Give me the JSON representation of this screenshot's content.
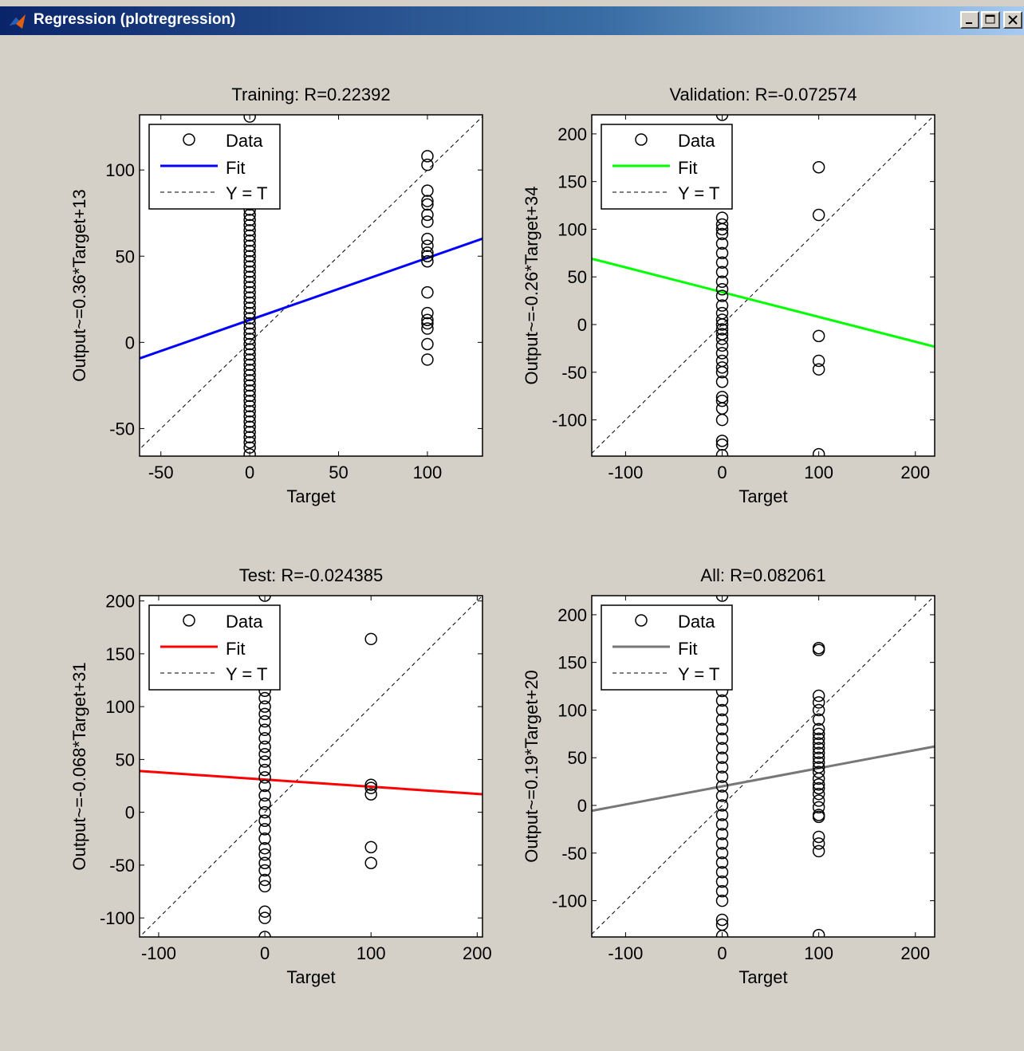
{
  "window": {
    "title": "Regression (plotregression)",
    "icon": "matlab-icon",
    "controls": [
      "minimize-icon",
      "maximize-icon",
      "close-icon"
    ]
  },
  "legend_labels": {
    "data": "Data",
    "fit": "Fit",
    "identity": "Y = T"
  },
  "chart_data": [
    {
      "type": "scatter",
      "title": "Training: R=0.22392",
      "xlabel": "Target",
      "ylabel": "Output~=0.36*Target+13",
      "xlim": [
        -62,
        131
      ],
      "ylim": [
        -66,
        132
      ],
      "xticks": [
        -50,
        0,
        50,
        100
      ],
      "yticks": [
        -50,
        0,
        50,
        100
      ],
      "fit_color": "#0000ff",
      "fit": {
        "slope": 0.36,
        "intercept": 13
      },
      "legend": "top-left",
      "points_x0": [
        -65,
        -61,
        -58,
        -55,
        -52,
        -49,
        -46,
        -43,
        -40,
        -37,
        -34,
        -31,
        -28,
        -25,
        -22,
        -19,
        -16,
        -13,
        -10,
        -7,
        -4,
        -1,
        2,
        5,
        8,
        11,
        14,
        17,
        20,
        23,
        26,
        29,
        32,
        35,
        38,
        41,
        44,
        47,
        50,
        53,
        56,
        59,
        62,
        65,
        68,
        71,
        74,
        77,
        80,
        131
      ],
      "points_x100": [
        108,
        103,
        88,
        82,
        80,
        74,
        70,
        60,
        56,
        52,
        50,
        47,
        29,
        17,
        13,
        11,
        8,
        -1,
        -10
      ]
    },
    {
      "type": "scatter",
      "title": "Validation: R=-0.072574",
      "xlabel": "Target",
      "ylabel": "Output~=-0.26*Target+34",
      "xlim": [
        -135,
        220
      ],
      "ylim": [
        -138,
        220
      ],
      "xticks": [
        -100,
        0,
        100,
        200
      ],
      "yticks": [
        -100,
        -50,
        0,
        50,
        100,
        150,
        200
      ],
      "fit_color": "#00ff00",
      "fit": {
        "slope": -0.26,
        "intercept": 34
      },
      "legend": "top-left",
      "points_x0": [
        -137,
        -126,
        -122,
        -100,
        -88,
        -80,
        -76,
        -60,
        -50,
        -45,
        -38,
        -30,
        -22,
        -15,
        -10,
        -5,
        0,
        5,
        12,
        20,
        30,
        37,
        45,
        55,
        65,
        75,
        85,
        95,
        100,
        105,
        112,
        220
      ],
      "points_x100": [
        165,
        115,
        -12,
        -38,
        -47,
        -136
      ]
    },
    {
      "type": "scatter",
      "title": "Test: R=-0.024385",
      "xlabel": "Target",
      "ylabel": "Output~=-0.068*Target+31",
      "xlim": [
        -118,
        205
      ],
      "ylim": [
        -118,
        205
      ],
      "xticks": [
        -100,
        0,
        100,
        200
      ],
      "yticks": [
        -100,
        -50,
        0,
        50,
        100,
        150,
        200
      ],
      "fit_color": "#ff0000",
      "fit": {
        "slope": -0.068,
        "intercept": 31
      },
      "legend": "top-left",
      "points_x0": [
        -118,
        -100,
        -94,
        -70,
        -64,
        -55,
        -48,
        -40,
        -34,
        -25,
        -16,
        -8,
        0,
        8,
        16,
        25,
        33,
        40,
        48,
        55,
        62,
        70,
        78,
        86,
        93,
        100,
        108,
        115,
        205
      ],
      "points_x100": [
        164,
        26,
        23,
        17,
        -33,
        -48
      ]
    },
    {
      "type": "scatter",
      "title": "All: R=0.082061",
      "xlabel": "Target",
      "ylabel": "Output~=0.19*Target+20",
      "xlim": [
        -135,
        220
      ],
      "ylim": [
        -138,
        220
      ],
      "xticks": [
        -100,
        0,
        100,
        200
      ],
      "yticks": [
        -100,
        -50,
        0,
        50,
        100,
        150,
        200
      ],
      "fit_color": "#777777",
      "fit": {
        "slope": 0.19,
        "intercept": 20
      },
      "legend": "top-left",
      "points_x0": [
        -137,
        -125,
        -120,
        -100,
        -90,
        -80,
        -70,
        -60,
        -50,
        -40,
        -30,
        -20,
        -10,
        0,
        10,
        20,
        30,
        40,
        50,
        60,
        70,
        80,
        90,
        100,
        110,
        120,
        130,
        140,
        150,
        160,
        170,
        180,
        190,
        200,
        220
      ],
      "points_x100": [
        165,
        163,
        115,
        108,
        100,
        90,
        80,
        75,
        70,
        65,
        60,
        55,
        50,
        45,
        40,
        35,
        28,
        22,
        18,
        12,
        5,
        -2,
        -10,
        -12,
        -33,
        -40,
        -48,
        -136
      ]
    }
  ]
}
